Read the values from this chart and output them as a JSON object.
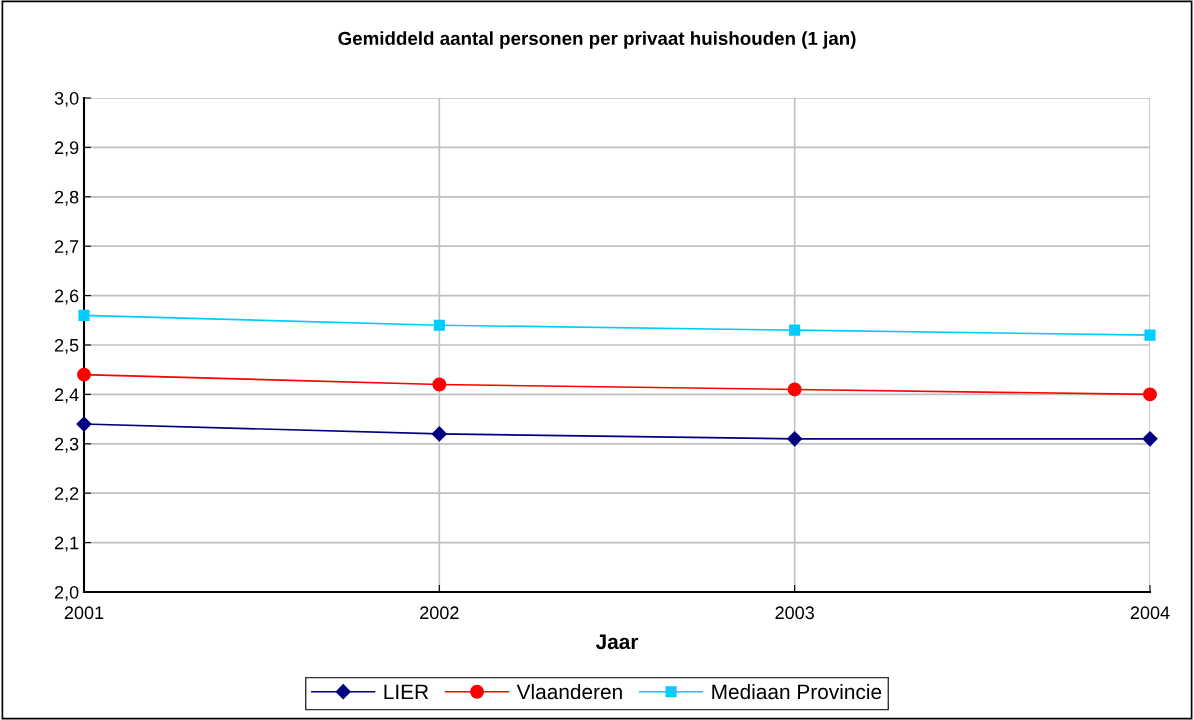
{
  "chart_data": {
    "type": "line",
    "title": "Gemiddeld aantal personen per privaat huishouden (1 jan)",
    "xlabel": "Jaar",
    "categories": [
      "2001",
      "2002",
      "2003",
      "2004"
    ],
    "series": [
      {
        "name": "LIER",
        "color": "#000080",
        "marker": "diamond",
        "values": [
          2.34,
          2.32,
          2.31,
          2.31
        ]
      },
      {
        "name": "Vlaanderen",
        "color": "#ff0000",
        "marker": "circle",
        "values": [
          2.44,
          2.42,
          2.41,
          2.4
        ]
      },
      {
        "name": "Mediaan Provincie",
        "color": "#00ccff",
        "marker": "square",
        "values": [
          2.56,
          2.54,
          2.53,
          2.52
        ]
      }
    ],
    "ylim": [
      2.0,
      3.0
    ],
    "yticks": [
      {
        "value": 2.0,
        "label": "2,0"
      },
      {
        "value": 2.1,
        "label": "2,1"
      },
      {
        "value": 2.2,
        "label": "2,2"
      },
      {
        "value": 2.3,
        "label": "2,3"
      },
      {
        "value": 2.4,
        "label": "2,4"
      },
      {
        "value": 2.5,
        "label": "2,5"
      },
      {
        "value": 2.6,
        "label": "2,6"
      },
      {
        "value": 2.7,
        "label": "2,7"
      },
      {
        "value": 2.8,
        "label": "2,8"
      },
      {
        "value": 2.9,
        "label": "2,9"
      },
      {
        "value": 3.0,
        "label": "3,0"
      }
    ],
    "grid": true,
    "legend": "bottom",
    "line_style": "solid"
  }
}
